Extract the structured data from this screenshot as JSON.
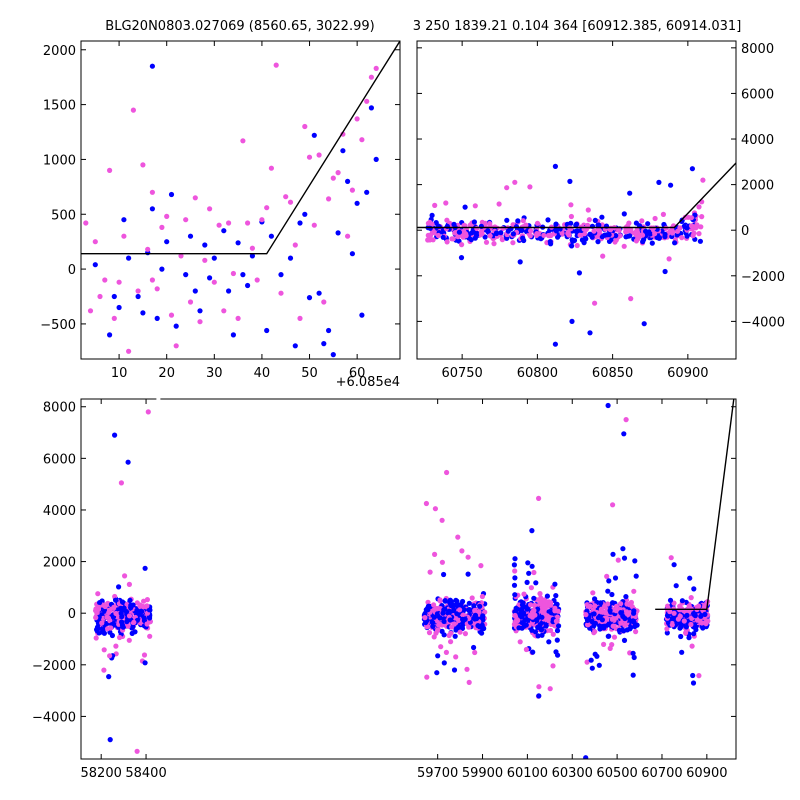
{
  "title_left": "BLG20N0803.027069 (8560.65, 3022.99)",
  "title_right": "3 250 1839.21 0.104 364 [60912.385, 60914.031]",
  "offset_label": "+6.085e4",
  "colors": {
    "series_a": "#0000ff",
    "series_b": "#ee55dd",
    "model": "#000000"
  },
  "chart_data": [
    {
      "id": "zoom-left",
      "type": "scatter",
      "xlim": [
        2,
        69
      ],
      "ylim": [
        -820,
        2080
      ],
      "x_ticks": [
        10,
        20,
        30,
        40,
        50,
        60
      ],
      "y_ticks": [
        -500,
        0,
        500,
        1000,
        1500,
        2000
      ],
      "series": [
        {
          "color_key": "series_a",
          "points": [
            [
              5,
              40
            ],
            [
              8,
              -600
            ],
            [
              9,
              -250
            ],
            [
              10,
              -350
            ],
            [
              11,
              450
            ],
            [
              12,
              100
            ],
            [
              14,
              -250
            ],
            [
              15,
              -400
            ],
            [
              16,
              150
            ],
            [
              17,
              1850
            ],
            [
              17,
              550
            ],
            [
              18,
              -450
            ],
            [
              19,
              0
            ],
            [
              20,
              250
            ],
            [
              21,
              680
            ],
            [
              22,
              -520
            ],
            [
              24,
              -50
            ],
            [
              25,
              300
            ],
            [
              26,
              -200
            ],
            [
              27,
              -380
            ],
            [
              28,
              220
            ],
            [
              29,
              -80
            ],
            [
              30,
              100
            ],
            [
              32,
              350
            ],
            [
              33,
              -200
            ],
            [
              34,
              -600
            ],
            [
              35,
              240
            ],
            [
              36,
              -50
            ],
            [
              37,
              -150
            ],
            [
              38,
              120
            ],
            [
              40,
              430
            ],
            [
              41,
              -560
            ],
            [
              42,
              300
            ],
            [
              44,
              -50
            ],
            [
              46,
              100
            ],
            [
              47,
              -700
            ],
            [
              48,
              420
            ],
            [
              49,
              500
            ],
            [
              50,
              -260
            ],
            [
              51,
              1220
            ],
            [
              52,
              -220
            ],
            [
              53,
              -680
            ],
            [
              54,
              -560
            ],
            [
              55,
              -780
            ],
            [
              56,
              330
            ],
            [
              57,
              1080
            ],
            [
              58,
              800
            ],
            [
              59,
              140
            ],
            [
              60,
              600
            ],
            [
              61,
              -420
            ],
            [
              62,
              700
            ],
            [
              63,
              1470
            ],
            [
              64,
              1000
            ]
          ]
        },
        {
          "color_key": "series_b",
          "points": [
            [
              3,
              420
            ],
            [
              4,
              -380
            ],
            [
              5,
              250
            ],
            [
              6,
              -250
            ],
            [
              7,
              -100
            ],
            [
              8,
              900
            ],
            [
              9,
              -450
            ],
            [
              10,
              -120
            ],
            [
              11,
              300
            ],
            [
              12,
              -750
            ],
            [
              13,
              1450
            ],
            [
              14,
              -200
            ],
            [
              15,
              950
            ],
            [
              16,
              180
            ],
            [
              17,
              -100
            ],
            [
              17,
              700
            ],
            [
              18,
              -180
            ],
            [
              19,
              380
            ],
            [
              20,
              480
            ],
            [
              21,
              -420
            ],
            [
              22,
              -700
            ],
            [
              23,
              120
            ],
            [
              24,
              450
            ],
            [
              25,
              -300
            ],
            [
              26,
              650
            ],
            [
              27,
              -480
            ],
            [
              28,
              80
            ],
            [
              29,
              550
            ],
            [
              30,
              -120
            ],
            [
              31,
              400
            ],
            [
              32,
              -380
            ],
            [
              33,
              420
            ],
            [
              34,
              -40
            ],
            [
              35,
              -450
            ],
            [
              36,
              1170
            ],
            [
              37,
              420
            ],
            [
              38,
              190
            ],
            [
              39,
              -100
            ],
            [
              40,
              450
            ],
            [
              41,
              560
            ],
            [
              42,
              920
            ],
            [
              43,
              1860
            ],
            [
              44,
              -220
            ],
            [
              45,
              660
            ],
            [
              46,
              610
            ],
            [
              47,
              220
            ],
            [
              48,
              -450
            ],
            [
              49,
              1300
            ],
            [
              50,
              1020
            ],
            [
              51,
              400
            ],
            [
              52,
              1040
            ],
            [
              53,
              -300
            ],
            [
              54,
              640
            ],
            [
              55,
              830
            ],
            [
              56,
              880
            ],
            [
              57,
              1230
            ],
            [
              58,
              300
            ],
            [
              59,
              720
            ],
            [
              60,
              1370
            ],
            [
              61,
              1180
            ],
            [
              62,
              1530
            ],
            [
              63,
              1750
            ],
            [
              64,
              1830
            ]
          ]
        }
      ],
      "model": [
        [
          2,
          140
        ],
        [
          41,
          140
        ],
        [
          69,
          2080
        ]
      ]
    },
    {
      "id": "zoom-right",
      "type": "scatter",
      "xlim": [
        60720,
        60932
      ],
      "ylim": [
        -5650,
        8300
      ],
      "x_ticks": [
        60750,
        60800,
        60850,
        60900
      ],
      "y_ticks": [
        -4000,
        -2000,
        0,
        2000,
        4000,
        6000,
        8000
      ],
      "model": [
        [
          60720,
          120
        ],
        [
          60891,
          120
        ],
        [
          60932,
          2950
        ]
      ]
    },
    {
      "id": "full-lightcurve",
      "type": "scatter",
      "xlim": [
        58110,
        61030
      ],
      "ylim": [
        -5650,
        8300
      ],
      "x_ticks": [
        58200,
        58400,
        59700,
        59900,
        60100,
        60300,
        60500,
        60700,
        60900
      ],
      "y_ticks": [
        -4000,
        -2000,
        0,
        2000,
        4000,
        6000,
        8000
      ],
      "model": [
        [
          60670,
          150
        ],
        [
          60900,
          150
        ],
        [
          61020,
          8300
        ]
      ]
    }
  ]
}
